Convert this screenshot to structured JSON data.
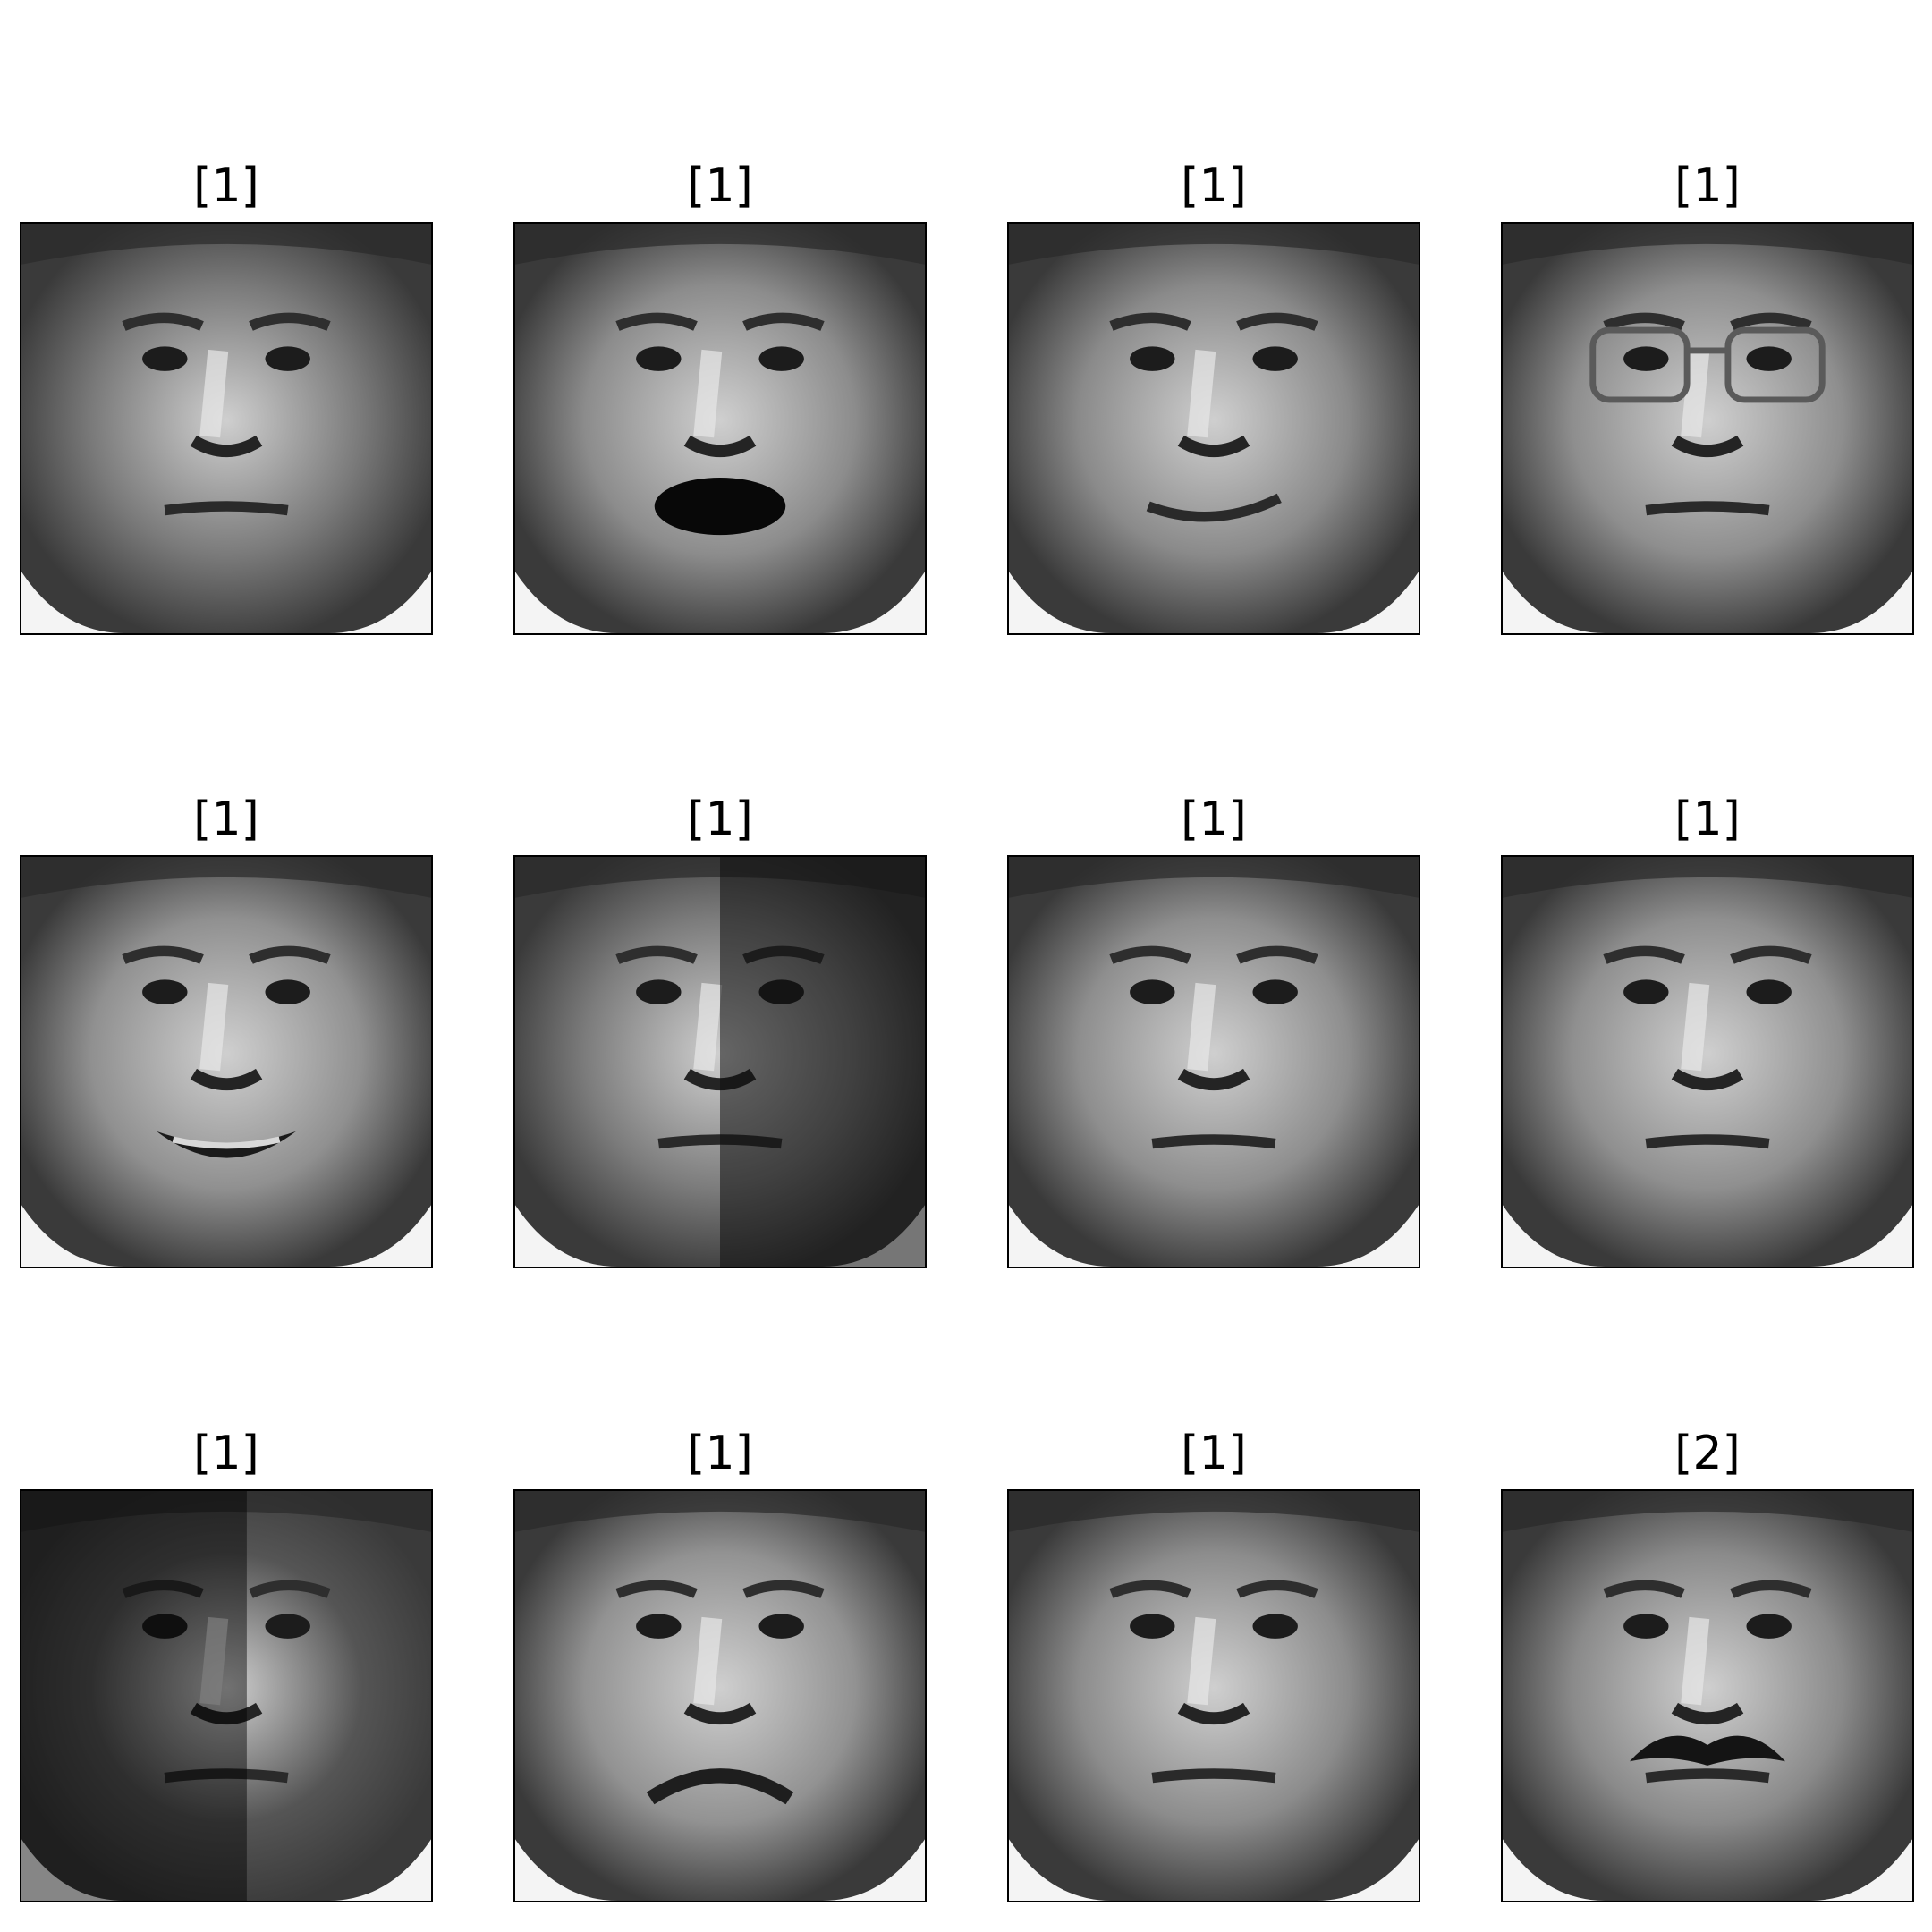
{
  "panels": [
    {
      "label": "[1]",
      "tone": "#7a7a7a",
      "mouth": "closed",
      "glasses": false,
      "mustache": false,
      "shadow": "none"
    },
    {
      "label": "[1]",
      "tone": "#8c8c8c",
      "mouth": "open",
      "glasses": false,
      "mustache": false,
      "shadow": "none"
    },
    {
      "label": "[1]",
      "tone": "#8a8a8a",
      "mouth": "smile",
      "glasses": false,
      "mustache": false,
      "shadow": "none"
    },
    {
      "label": "[1]",
      "tone": "#8e8e8e",
      "mouth": "closed",
      "glasses": true,
      "mustache": false,
      "shadow": "none"
    },
    {
      "label": "[1]",
      "tone": "#909090",
      "mouth": "grin",
      "glasses": false,
      "mustache": false,
      "shadow": "none"
    },
    {
      "label": "[1]",
      "tone": "#7c7c7c",
      "mouth": "closed",
      "glasses": false,
      "mustache": false,
      "shadow": "right"
    },
    {
      "label": "[1]",
      "tone": "#8e8e8e",
      "mouth": "closed",
      "glasses": false,
      "mustache": false,
      "shadow": "none"
    },
    {
      "label": "[1]",
      "tone": "#8f8f8f",
      "mouth": "closed",
      "glasses": false,
      "mustache": false,
      "shadow": "none"
    },
    {
      "label": "[1]",
      "tone": "#555555",
      "mouth": "closed",
      "glasses": false,
      "mustache": false,
      "shadow": "left"
    },
    {
      "label": "[1]",
      "tone": "#929292",
      "mouth": "frown",
      "glasses": false,
      "mustache": false,
      "shadow": "none"
    },
    {
      "label": "[1]",
      "tone": "#8c8c8c",
      "mouth": "closed",
      "glasses": false,
      "mustache": false,
      "shadow": "none"
    },
    {
      "label": "[2]",
      "tone": "#8a8a8a",
      "mouth": "closed",
      "glasses": false,
      "mustache": true,
      "shadow": "none"
    }
  ]
}
